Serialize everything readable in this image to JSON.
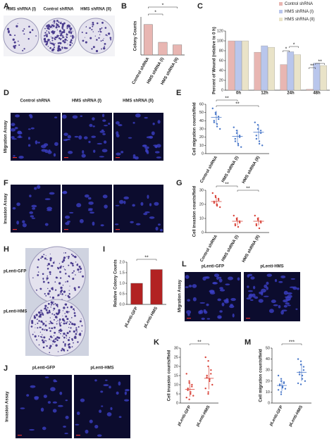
{
  "panel_letters": [
    "A",
    "B",
    "C",
    "D",
    "E",
    "F",
    "G",
    "H",
    "I",
    "L",
    "J",
    "K",
    "M"
  ],
  "image_panels": [
    {
      "labels": [
        "HMS shRNA (I)",
        "Control shRNA",
        "HMS shRNA (II)"
      ]
    },
    {
      "labels": [
        "Control shRNA",
        "HMS shRNA (I)",
        "HMS shRNA (II)"
      ],
      "side_label": "Migration Assay"
    },
    {
      "labels": [],
      "side_label": "Invasion Assay"
    },
    {
      "labels": [
        "pLenti-GFP",
        "pLenti-HMS"
      ]
    },
    {
      "labels": [
        "pLenti-GFP",
        "pLenti-HMS"
      ],
      "side_label": "Migration Assay"
    },
    {
      "labels": [
        "pLenti-GFP",
        "pLenti-HMS"
      ],
      "side_label": "Invasion Assay"
    }
  ],
  "chart_data": [
    {
      "type": "bar",
      "y_label": "Colony Counts",
      "categories": [
        "Control shRNA",
        "HMS shRNA (I)",
        "HMS shRNA (II)"
      ],
      "values": [
        240,
        100,
        80
      ],
      "color": "#e8b6b2",
      "ylim": [
        0,
        300
      ],
      "annotations": [
        "*",
        "*"
      ]
    },
    {
      "type": "bar",
      "y_label": "Percent of Wound (relative to 0 h)",
      "categories": [
        "0h",
        "12h",
        "24h",
        "48h"
      ],
      "series": [
        {
          "name": "Control shRNA",
          "color": "#e8b6b2",
          "values": [
            100,
            77,
            52,
            2
          ]
        },
        {
          "name": "HMS shRNA (I)",
          "color": "#b9c6ec",
          "values": [
            100,
            90,
            78,
            55
          ]
        },
        {
          "name": "HMS shRNA (II)",
          "color": "#e9e3c8",
          "values": [
            100,
            87,
            72,
            50
          ]
        }
      ],
      "ylim": [
        0,
        120
      ],
      "yticks": [
        0,
        20,
        40,
        60,
        80,
        100,
        120
      ],
      "annotations": [
        "*",
        "*",
        "**",
        "**"
      ]
    },
    {
      "type": "strip",
      "y_label": "Cell migration counts/field",
      "categories": [
        "Control shRNA",
        "HMS shRNA (I)",
        "HMS shRNA (II)"
      ],
      "points": [
        [
          55,
          50,
          48,
          45,
          42,
          40,
          38,
          36,
          33,
          30
        ],
        [
          32,
          28,
          25,
          22,
          20,
          18,
          15,
          12,
          10,
          8
        ],
        [
          38,
          35,
          30,
          28,
          25,
          22,
          18,
          15,
          12,
          10
        ]
      ],
      "means": [
        44,
        21,
        26
      ],
      "sd": [
        8,
        8,
        9
      ],
      "colors": [
        "#4a78c9",
        "#4a78c9",
        "#4a78c9"
      ],
      "ylim": [
        0,
        60
      ],
      "yticks": [
        0,
        10,
        20,
        30,
        40,
        50,
        60
      ],
      "annotations": [
        "**",
        "**"
      ]
    },
    {
      "type": "strip",
      "y_label": "Cell invasion counts/field",
      "categories": [
        "Control shRNA",
        "HMS shRNA (I)",
        "HMS shRNA (II)"
      ],
      "points": [
        [
          28,
          26,
          25,
          24,
          23,
          22,
          21,
          20,
          19,
          18
        ],
        [
          12,
          10,
          9,
          8,
          7,
          6,
          5,
          4
        ],
        [
          12,
          10,
          9,
          8,
          7,
          6,
          5,
          3
        ]
      ],
      "means": [
        22,
        8,
        8
      ],
      "sd": [
        3,
        3,
        3
      ],
      "colors": [
        "#d9443a",
        "#d9443a",
        "#d9443a"
      ],
      "ylim": [
        0,
        30
      ],
      "yticks": [
        0,
        10,
        20,
        30
      ],
      "annotations": [
        "**",
        "**"
      ]
    },
    {
      "type": "bar",
      "y_label": "Relative Colony Counts",
      "categories": [
        "pLenti-GFP",
        "pLenti-HMS"
      ],
      "values": [
        1,
        1.65
      ],
      "color": "#b22222",
      "ylim": [
        0,
        2
      ],
      "yticks": [
        {
          "value": 0,
          "label": "0.0"
        },
        {
          "value": 0.5,
          "label": "0.5"
        },
        {
          "value": 1,
          "label": "1.0"
        },
        {
          "value": 1.5,
          "label": "1.5"
        },
        {
          "value": 2,
          "label": "2.0"
        }
      ],
      "annotations": [
        "**"
      ]
    },
    {
      "type": "strip",
      "y_label": "Cell invasion counts/field",
      "categories": [
        "pLenti-GFP",
        "pLenti-HMS"
      ],
      "points": [
        [
          16,
          12,
          11,
          10,
          9,
          8,
          7,
          6,
          5,
          4,
          3,
          2
        ],
        [
          25,
          23,
          20,
          18,
          16,
          15,
          14,
          13,
          12,
          10,
          8,
          6,
          5
        ]
      ],
      "means": [
        7.5,
        13.5
      ],
      "sd": [
        4,
        6
      ],
      "colors": [
        "#d9443a",
        "#d9443a"
      ],
      "ylim": [
        0,
        30
      ],
      "yticks": [
        0,
        5,
        10,
        15,
        20,
        25,
        30
      ],
      "annotations": [
        "**"
      ]
    },
    {
      "type": "strip",
      "y_label": "Cell migration counts/field",
      "categories": [
        "pLenti-GFP",
        "pLenti-HMS"
      ],
      "points": [
        [
          25,
          22,
          20,
          19,
          18,
          17,
          16,
          15,
          14,
          13,
          12,
          10,
          8
        ],
        [
          40,
          38,
          35,
          33,
          30,
          28,
          26,
          25,
          22,
          20,
          18,
          17
        ]
      ],
      "means": [
        16,
        28
      ],
      "sd": [
        5,
        8
      ],
      "colors": [
        "#4a78c9",
        "#4a78c9"
      ],
      "ylim": [
        0,
        50
      ],
      "yticks": [
        0,
        10,
        20,
        30,
        40,
        50
      ],
      "annotations": [
        "***"
      ]
    }
  ]
}
